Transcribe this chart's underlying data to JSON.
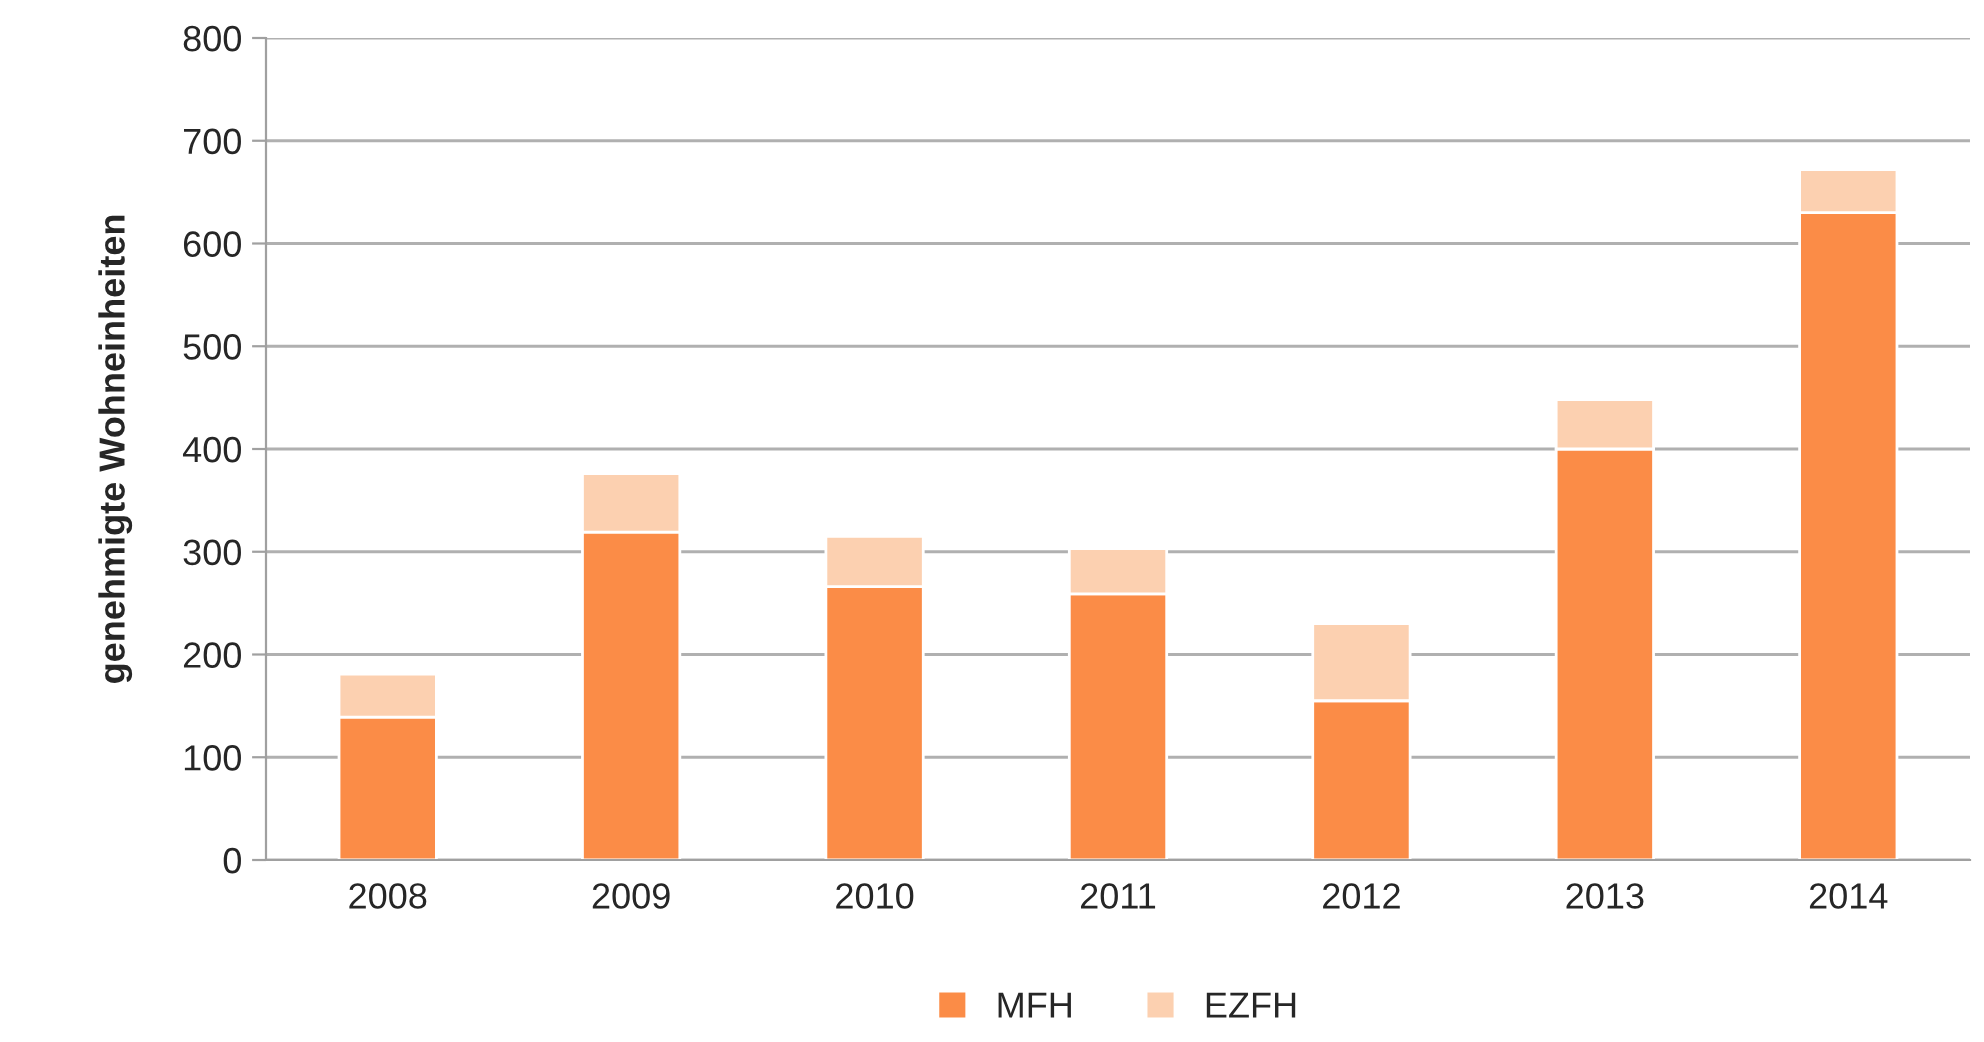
{
  "chart_data": {
    "type": "bar",
    "stacked": true,
    "ylabel": "genehmigte Wohneinheiten",
    "categories": [
      "2008",
      "2009",
      "2010",
      "2011",
      "2012",
      "2013",
      "2014"
    ],
    "series": [
      {
        "name": "MFH",
        "color": "#fb8c47",
        "values": [
          139,
          319,
          266,
          259,
          155,
          400,
          630
        ]
      },
      {
        "name": "EZFH",
        "color": "#fcd0b0",
        "values": [
          42,
          57,
          49,
          44,
          75,
          48,
          42
        ]
      }
    ],
    "ylim": [
      0,
      800
    ],
    "yticks": [
      0,
      100,
      200,
      300,
      400,
      500,
      600,
      700,
      800
    ],
    "grid": "y",
    "legend": "bottom"
  }
}
